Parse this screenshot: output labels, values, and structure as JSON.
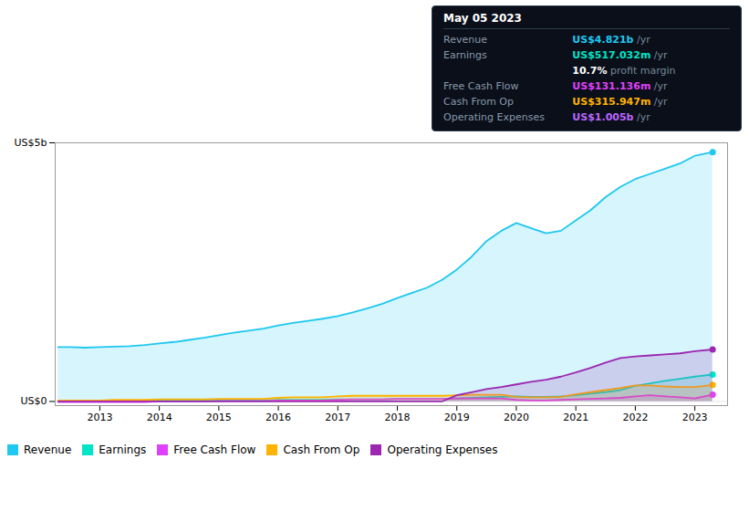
{
  "chart_data": {
    "type": "area",
    "x": [
      2012.3,
      2012.5,
      2012.75,
      2013.0,
      2013.25,
      2013.5,
      2013.75,
      2014.0,
      2014.25,
      2014.5,
      2014.75,
      2015.0,
      2015.25,
      2015.5,
      2015.75,
      2016.0,
      2016.25,
      2016.5,
      2016.75,
      2017.0,
      2017.25,
      2017.5,
      2017.75,
      2018.0,
      2018.25,
      2018.5,
      2018.75,
      2019.0,
      2019.25,
      2019.5,
      2019.75,
      2020.0,
      2020.25,
      2020.5,
      2020.75,
      2021.0,
      2021.25,
      2021.5,
      2021.75,
      2022.0,
      2022.25,
      2022.5,
      2022.75,
      2023.0,
      2023.3
    ],
    "series": [
      {
        "name": "Revenue",
        "color": "#1ec8f0",
        "values": [
          1.05,
          1.05,
          1.04,
          1.05,
          1.06,
          1.07,
          1.09,
          1.12,
          1.15,
          1.19,
          1.23,
          1.28,
          1.33,
          1.37,
          1.41,
          1.47,
          1.52,
          1.56,
          1.6,
          1.65,
          1.72,
          1.8,
          1.89,
          2.0,
          2.1,
          2.2,
          2.35,
          2.55,
          2.8,
          3.1,
          3.3,
          3.45,
          3.35,
          3.25,
          3.3,
          3.5,
          3.7,
          3.95,
          4.15,
          4.3,
          4.4,
          4.5,
          4.6,
          4.75,
          4.82
        ]
      },
      {
        "name": "Earnings",
        "color": "#00e5c8",
        "values": [
          0.01,
          0.01,
          0.01,
          0.01,
          0.01,
          0.01,
          0.01,
          0.02,
          0.02,
          0.02,
          0.02,
          0.02,
          0.02,
          0.02,
          0.02,
          0.03,
          0.03,
          0.03,
          0.03,
          0.04,
          0.04,
          0.04,
          0.04,
          0.05,
          0.05,
          0.05,
          0.05,
          0.06,
          0.07,
          0.08,
          0.09,
          0.1,
          0.09,
          0.09,
          0.1,
          0.12,
          0.15,
          0.18,
          0.22,
          0.3,
          0.35,
          0.4,
          0.44,
          0.48,
          0.52
        ]
      },
      {
        "name": "Free Cash Flow",
        "color": "#e040fb",
        "values": [
          -0.01,
          -0.01,
          -0.01,
          -0.01,
          -0.01,
          -0.01,
          -0.01,
          0.0,
          0.0,
          0.0,
          0.0,
          0.01,
          0.01,
          0.01,
          0.01,
          0.02,
          0.02,
          0.02,
          0.02,
          0.03,
          0.04,
          0.04,
          0.04,
          0.05,
          0.05,
          0.05,
          0.05,
          0.06,
          0.06,
          0.06,
          0.06,
          0.03,
          0.02,
          0.02,
          0.03,
          0.04,
          0.05,
          0.06,
          0.07,
          0.1,
          0.12,
          0.1,
          0.08,
          0.06,
          0.13
        ]
      },
      {
        "name": "Cash From Op",
        "color": "#ffb300",
        "values": [
          0.02,
          0.02,
          0.02,
          0.02,
          0.03,
          0.03,
          0.03,
          0.04,
          0.04,
          0.04,
          0.04,
          0.05,
          0.05,
          0.05,
          0.05,
          0.07,
          0.08,
          0.08,
          0.08,
          0.1,
          0.11,
          0.11,
          0.11,
          0.11,
          0.11,
          0.11,
          0.11,
          0.12,
          0.13,
          0.13,
          0.13,
          0.09,
          0.08,
          0.08,
          0.09,
          0.14,
          0.18,
          0.22,
          0.26,
          0.31,
          0.31,
          0.29,
          0.28,
          0.28,
          0.32
        ]
      },
      {
        "name": "Operating Expenses",
        "color": "#9c27b0",
        "values": [
          0.0,
          0.0,
          0.0,
          0.0,
          0.0,
          0.0,
          0.0,
          0.0,
          0.0,
          0.0,
          0.0,
          0.0,
          0.0,
          0.0,
          0.0,
          0.0,
          0.0,
          0.0,
          0.0,
          0.0,
          0.0,
          0.0,
          0.0,
          0.0,
          0.0,
          0.0,
          0.0,
          0.12,
          0.18,
          0.24,
          0.28,
          0.33,
          0.38,
          0.42,
          0.48,
          0.56,
          0.65,
          0.75,
          0.84,
          0.87,
          0.89,
          0.91,
          0.93,
          0.97,
          1.005
        ]
      }
    ],
    "xlim": [
      2012.25,
      2023.55
    ],
    "xticks": [
      2013,
      2014,
      2015,
      2016,
      2017,
      2018,
      2019,
      2020,
      2021,
      2022,
      2023
    ],
    "ylim": [
      -0.08,
      5.0
    ],
    "yticks": [
      {
        "value": 0,
        "label": "US$0"
      },
      {
        "value": 5,
        "label": "US$5b"
      }
    ],
    "grid": true,
    "legend": "bottom",
    "annotations": [
      {
        "text": "May 05 2023",
        "color": "#ffffff"
      },
      {
        "label": "Revenue",
        "value": "US$4.821b",
        "suffix": " /yr",
        "color": "#1ec8f0"
      },
      {
        "label": "Earnings",
        "value": "US$517.032m",
        "suffix": " /yr",
        "color": "#00e5c8"
      },
      {
        "value": "10.7%",
        "suffix": " profit margin",
        "color": "#ffffff"
      },
      {
        "label": "Free Cash Flow",
        "value": "US$131.136m",
        "suffix": " /yr",
        "color": "#e040fb"
      },
      {
        "label": "Cash From Op",
        "value": "US$315.947m",
        "suffix": " /yr",
        "color": "#ffb300"
      },
      {
        "label": "Operating Expenses",
        "value": "US$1.005b",
        "suffix": " /yr",
        "color": "#bb66ff"
      }
    ]
  }
}
